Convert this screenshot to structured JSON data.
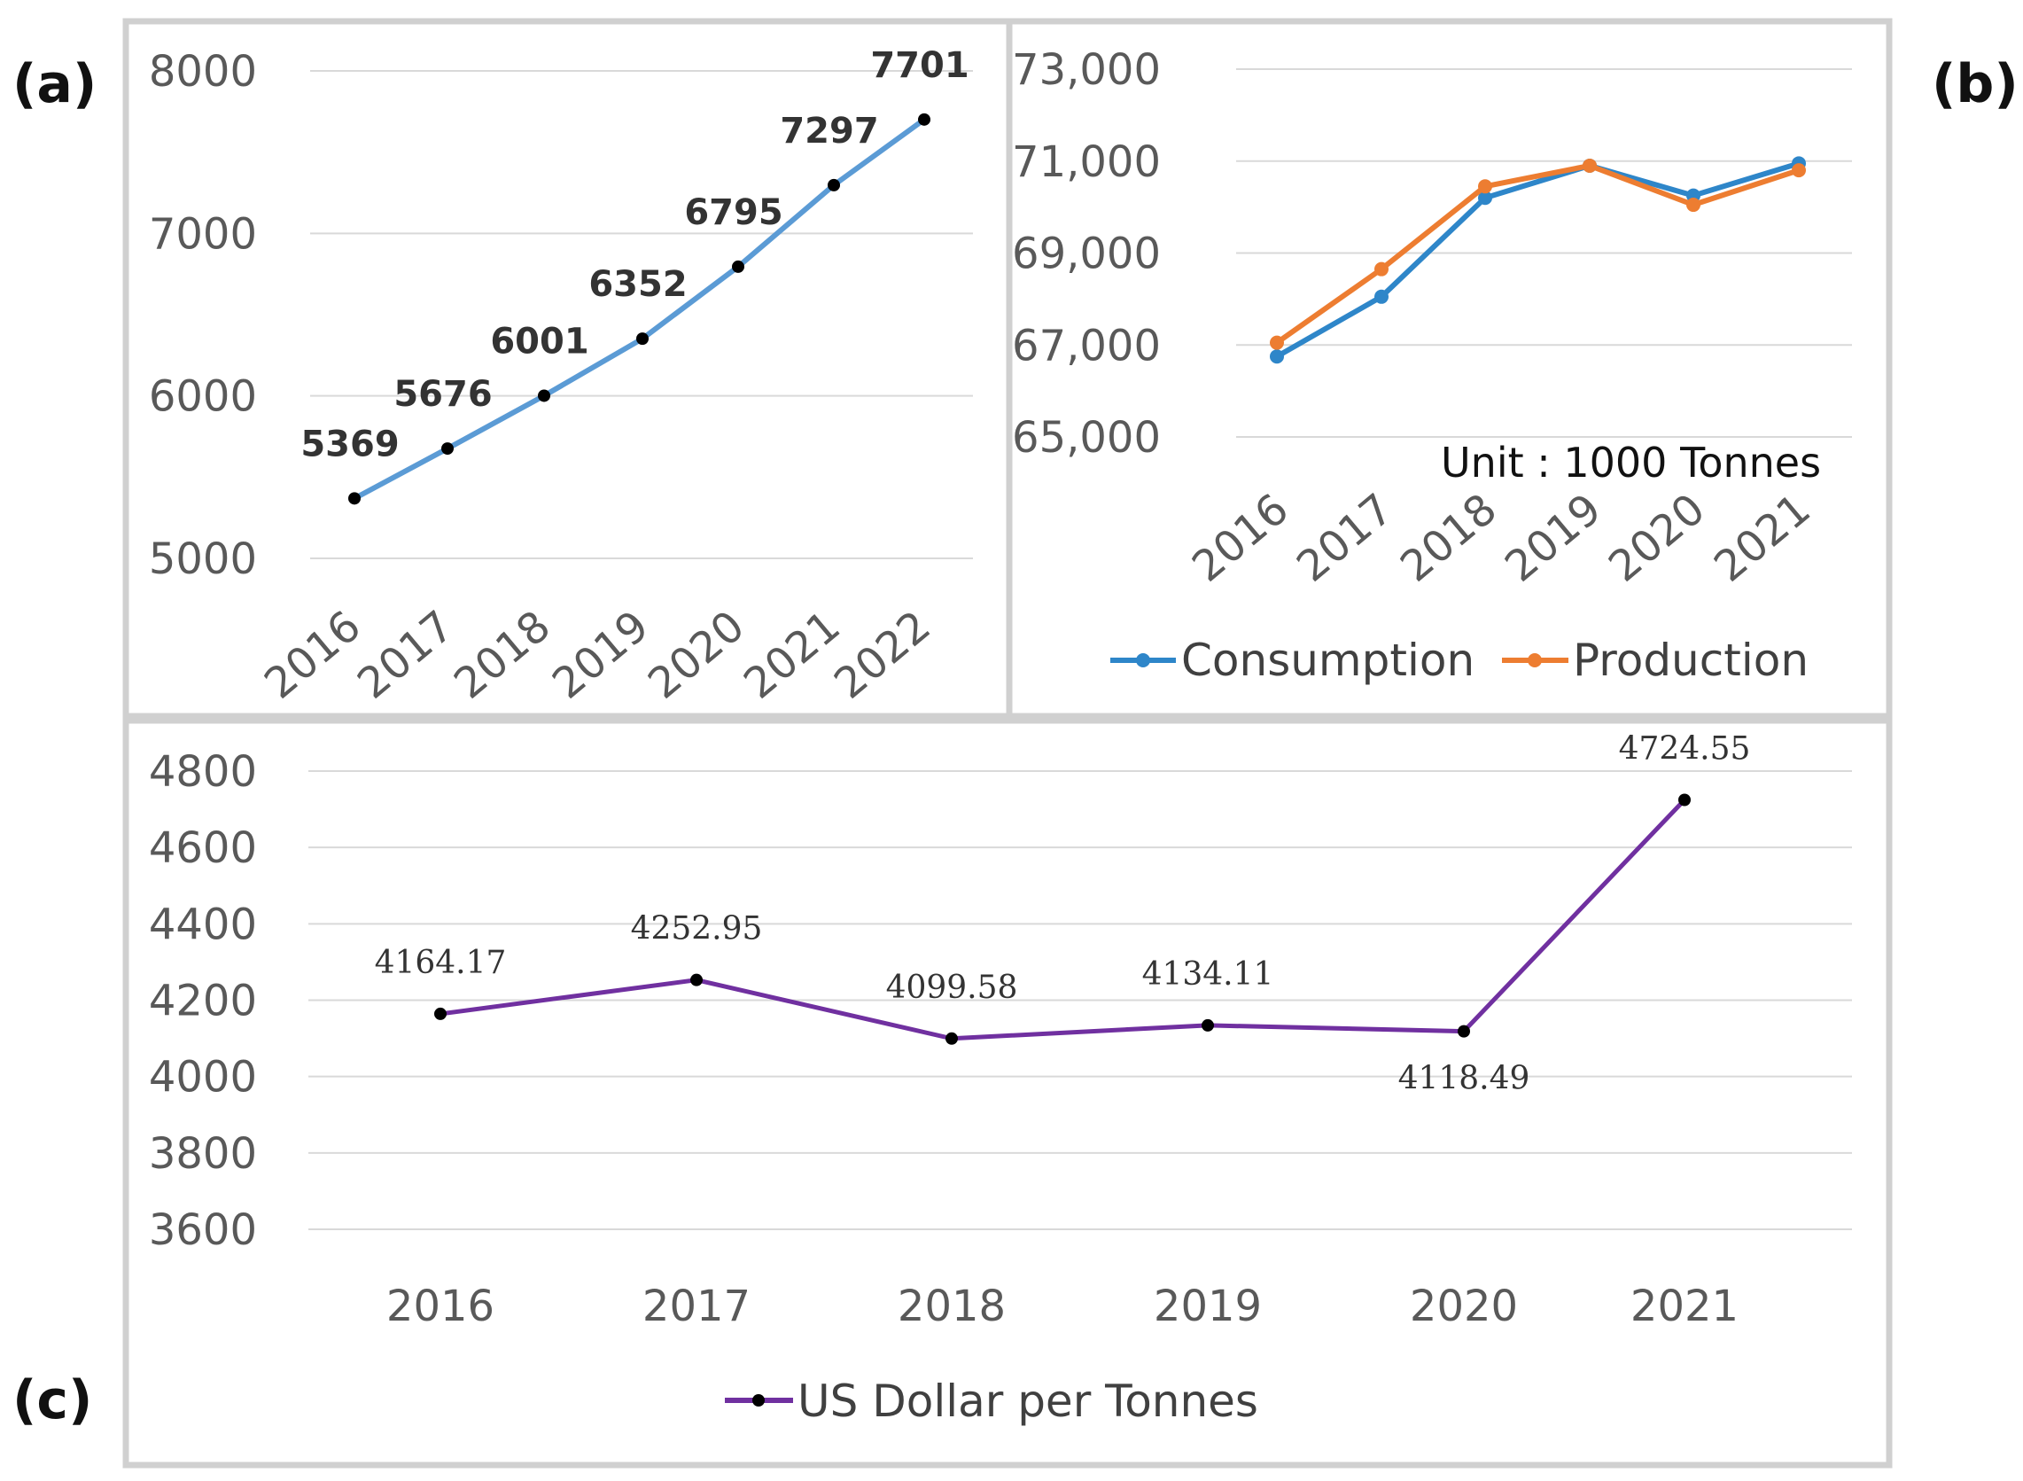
{
  "panel_labels": {
    "a": "(a)",
    "b": "(b)",
    "c": "(c)"
  },
  "colors": {
    "series_a": "#5b9bd5",
    "consumption": "#2e86c9",
    "production": "#ed7d31",
    "price": "#7030a0",
    "marker": "#000000",
    "grid": "#d9d9d9",
    "frame": "#d0d0d0"
  },
  "chart_data": [
    {
      "id": "a",
      "type": "line",
      "categories": [
        "2016",
        "2017",
        "2018",
        "2019",
        "2020",
        "2021",
        "2022"
      ],
      "values": [
        5369,
        5676,
        6001,
        6352,
        6795,
        7297,
        7701
      ],
      "data_labels": [
        "5369",
        "5676",
        "6001",
        "6352",
        "6795",
        "7297",
        "7701"
      ],
      "yticks": [
        "5000",
        "6000",
        "7000",
        "8000"
      ],
      "ylim": [
        5000,
        8000
      ],
      "title": "",
      "xlabel": "",
      "ylabel": "",
      "grid": true
    },
    {
      "id": "b",
      "type": "line",
      "categories": [
        "2016",
        "2017",
        "2018",
        "2019",
        "2020",
        "2021"
      ],
      "series": [
        {
          "name": "Consumption",
          "values": [
            66750,
            68050,
            70200,
            70900,
            70250,
            70950
          ]
        },
        {
          "name": "Production",
          "values": [
            67050,
            68650,
            70450,
            70900,
            70050,
            70800
          ]
        }
      ],
      "yticks": [
        "65,000",
        "67,000",
        "69,000",
        "71,000",
        "73,000"
      ],
      "ylim": [
        65000,
        73000
      ],
      "annotation": "Unit : 1000 Tonnes",
      "legend": [
        "Consumption",
        "Production"
      ],
      "legend_position": "bottom",
      "grid": true
    },
    {
      "id": "c",
      "type": "line",
      "categories": [
        "2016",
        "2017",
        "2018",
        "2019",
        "2020",
        "2021"
      ],
      "values": [
        4164.17,
        4252.95,
        4099.58,
        4134.11,
        4118.49,
        4724.55
      ],
      "data_labels": [
        "4164.17",
        "4252.95",
        "4099.58",
        "4134.11",
        "4118.49",
        "4724.55"
      ],
      "yticks": [
        "3600",
        "3800",
        "4000",
        "4200",
        "4400",
        "4600",
        "4800"
      ],
      "ylim": [
        3600,
        4800
      ],
      "legend": [
        "US Dollar per Tonnes"
      ],
      "legend_position": "bottom",
      "grid": true
    }
  ]
}
